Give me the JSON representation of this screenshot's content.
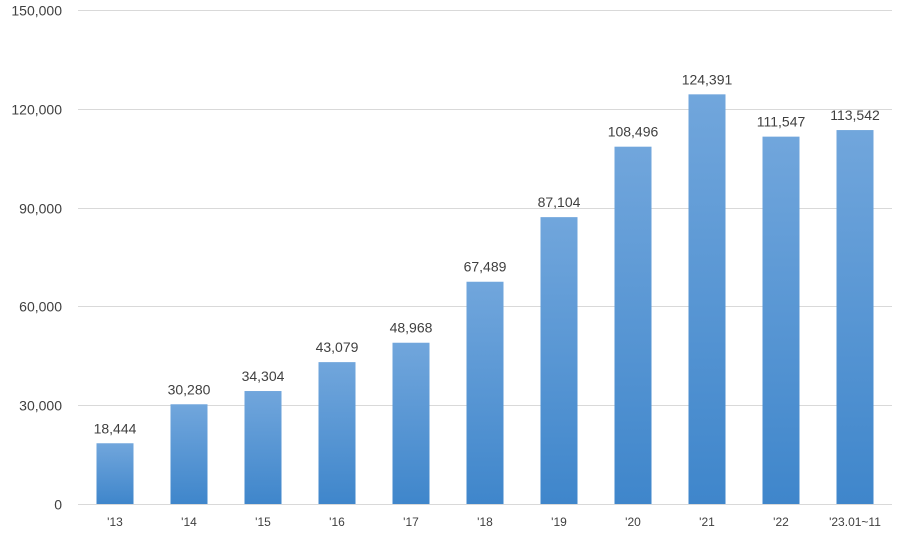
{
  "chart_data": {
    "type": "bar",
    "categories": [
      "'13",
      "'14",
      "'15",
      "'16",
      "'17",
      "'18",
      "'19",
      "'20",
      "'21",
      "'22",
      "'23.01~11"
    ],
    "values": [
      18444,
      30280,
      34304,
      43079,
      48968,
      67489,
      87104,
      108496,
      124391,
      111547,
      113542
    ],
    "data_labels": [
      "18,444",
      "30,280",
      "34,304",
      "43,079",
      "48,968",
      "67,489",
      "87,104",
      "108,496",
      "124,391",
      "111,547",
      "113,542"
    ],
    "ylim": [
      0,
      150000
    ],
    "yticks": [
      0,
      30000,
      60000,
      90000,
      120000,
      150000
    ],
    "ytick_labels": [
      "0",
      "30,000",
      "60,000",
      "90,000",
      "120,000",
      "150,000"
    ],
    "grid": true,
    "legend": false,
    "bar_color_top": "#71a6dc",
    "bar_color_bottom": "#3f86cb",
    "grid_color": "#d9d9d9",
    "text_color": "#404040"
  }
}
